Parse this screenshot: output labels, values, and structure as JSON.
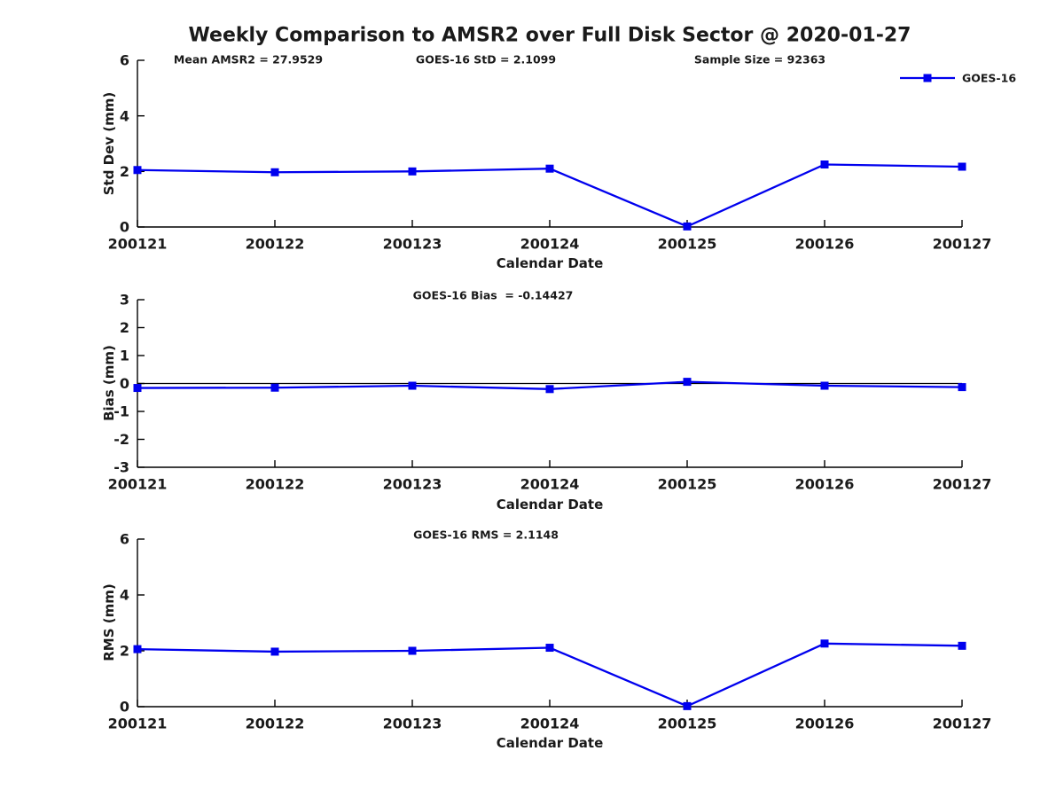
{
  "title": "Weekly Comparison to AMSR2 over Full Disk Sector @ 2020-01-27",
  "legend": {
    "label": "GOES-16"
  },
  "colors": {
    "series": "#0000EE",
    "axis": "#000000",
    "zero_line": "#000000"
  },
  "chart_data": [
    {
      "type": "line",
      "categories": [
        "200121",
        "200122",
        "200123",
        "200124",
        "200125",
        "200126",
        "200127"
      ],
      "series": [
        {
          "name": "GOES-16",
          "values": [
            2.05,
            1.97,
            2.0,
            2.1,
            0.02,
            2.25,
            2.17
          ]
        }
      ],
      "ylabel": "Std Dev (mm)",
      "xlabel": "Calendar Date",
      "ylim": [
        0,
        6
      ],
      "yticks": [
        0,
        2,
        4,
        6
      ],
      "zero_line": false,
      "annotations": [
        "Mean AMSR2 = 27.9529",
        "GOES-16 StD = 2.1099",
        "Sample Size = 92363"
      ],
      "legend_entry": "GOES-16",
      "legend_position": "top-right",
      "grid": false
    },
    {
      "type": "line",
      "categories": [
        "200121",
        "200122",
        "200123",
        "200124",
        "200125",
        "200126",
        "200127"
      ],
      "series": [
        {
          "name": "GOES-16",
          "values": [
            -0.16,
            -0.15,
            -0.08,
            -0.2,
            0.06,
            -0.08,
            -0.13
          ]
        }
      ],
      "ylabel": "Bias (mm)",
      "xlabel": "Calendar Date",
      "ylim": [
        -3,
        3
      ],
      "yticks": [
        -3,
        -2,
        -1,
        0,
        1,
        2,
        3
      ],
      "zero_line": true,
      "annotations": [
        "GOES-16 Bias  = -0.14427"
      ],
      "grid": false
    },
    {
      "type": "line",
      "categories": [
        "200121",
        "200122",
        "200123",
        "200124",
        "200125",
        "200126",
        "200127"
      ],
      "series": [
        {
          "name": "GOES-16",
          "values": [
            2.06,
            1.97,
            2.0,
            2.11,
            0.02,
            2.26,
            2.18
          ]
        }
      ],
      "ylabel": "RMS (mm)",
      "xlabel": "Calendar Date",
      "ylim": [
        0,
        6
      ],
      "yticks": [
        0,
        2,
        4,
        6
      ],
      "zero_line": false,
      "annotations": [
        "GOES-16 RMS = 2.1148"
      ],
      "grid": false
    }
  ]
}
